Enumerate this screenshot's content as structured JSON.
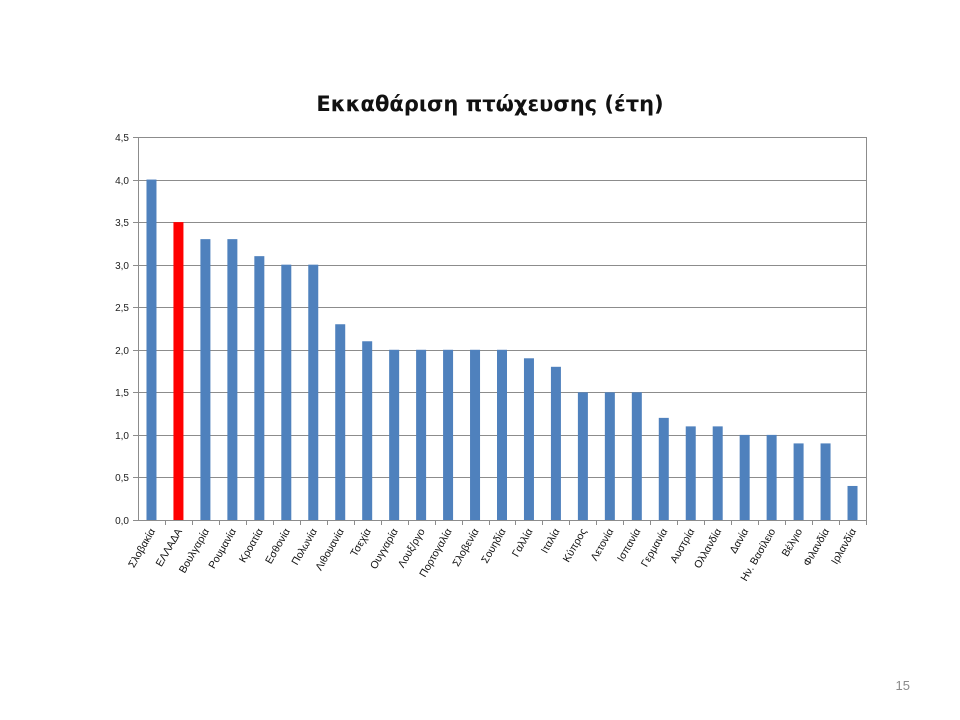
{
  "page": {
    "number": "15"
  },
  "chart_data": {
    "type": "bar",
    "title": "Εκκαθάριση πτώχευσης (έτη)",
    "xlabel": "",
    "ylabel": "",
    "ylim": [
      0,
      4.5
    ],
    "yticks": [
      "0,0",
      "0,5",
      "1,0",
      "1,5",
      "2,0",
      "2,5",
      "3,0",
      "3,5",
      "4,0",
      "4,5"
    ],
    "grid": true,
    "colors": {
      "default": "#4f81bd",
      "highlight": "#ff0000"
    },
    "highlight_category": "ΕΛΛΑΔΑ",
    "categories": [
      "Σλοβακία",
      "ΕΛΛΑΔΑ",
      "Βουλγαρία",
      "Ρουμανία",
      "Κροατία",
      "Εσθονία",
      "Πολωνία",
      "Λιθουανία",
      "Τσεχία",
      "Ουγγαρία",
      "Λουξ/ργο",
      "Πορτογαλία",
      "Σλοβενία",
      "Σουηδία",
      "Γαλλία",
      "Ιταλία",
      "Κύπρος",
      "Λετονία",
      "Ισπανία",
      "Γερμανία",
      "Αυστρία",
      "Ολλανδία",
      "Δανία",
      "Ην. Βασίλειο",
      "Βέλγιο",
      "Φιλανδία",
      "Ιρλανδία"
    ],
    "values": [
      4.0,
      3.5,
      3.3,
      3.3,
      3.1,
      3.0,
      3.0,
      2.3,
      2.1,
      2.0,
      2.0,
      2.0,
      2.0,
      2.0,
      1.9,
      1.8,
      1.5,
      1.5,
      1.5,
      1.2,
      1.1,
      1.1,
      1.0,
      1.0,
      0.9,
      0.9,
      0.4
    ]
  }
}
